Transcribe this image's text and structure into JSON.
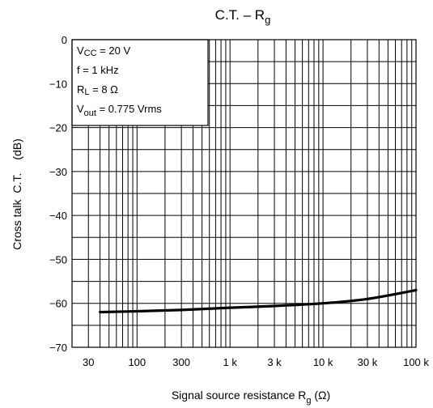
{
  "chart_data": {
    "type": "line",
    "title": {
      "main": "C.T. – R",
      "sub": "g"
    },
    "xlabel": {
      "main": "Signal source resistance   R",
      "sub": "g",
      "unit": "   (Ω)"
    },
    "ylabel": {
      "left": "Cross talk",
      "mid": "C.T.",
      "unit": "(dB)"
    },
    "x_scale": "log",
    "xlim": [
      20,
      100000
    ],
    "ylim": [
      -70,
      0
    ],
    "x_ticks": [
      {
        "value": 30,
        "label": "30"
      },
      {
        "value": 100,
        "label": "100"
      },
      {
        "value": 300,
        "label": "300"
      },
      {
        "value": 1000,
        "label": "1 k"
      },
      {
        "value": 3000,
        "label": "3 k"
      },
      {
        "value": 10000,
        "label": "10 k"
      },
      {
        "value": 30000,
        "label": "30 k"
      },
      {
        "value": 100000,
        "label": "100 k"
      }
    ],
    "y_ticks": [
      {
        "value": 0,
        "label": "0"
      },
      {
        "value": -10,
        "label": "−10"
      },
      {
        "value": -20,
        "label": "−20"
      },
      {
        "value": -30,
        "label": "−30"
      },
      {
        "value": -40,
        "label": "−40"
      },
      {
        "value": -50,
        "label": "−50"
      },
      {
        "value": -60,
        "label": "−60"
      },
      {
        "value": -70,
        "label": "−70"
      }
    ],
    "grid": true,
    "conditions": [
      {
        "main": "V",
        "sub": "CC",
        "rest": " = 20 V"
      },
      {
        "main": "f = 1 kHz",
        "sub": "",
        "rest": ""
      },
      {
        "main": "R",
        "sub": "L",
        "rest": " = 8 Ω"
      },
      {
        "main": "V",
        "sub": "out",
        "rest": " = 0.775 Vrms"
      }
    ],
    "series": [
      {
        "x": [
          40,
          100,
          300,
          1000,
          3000,
          10000,
          30000,
          100000
        ],
        "y": [
          -62,
          -61.8,
          -61.5,
          -61.0,
          -60.6,
          -60.0,
          -59.0,
          -57.0
        ]
      }
    ]
  }
}
